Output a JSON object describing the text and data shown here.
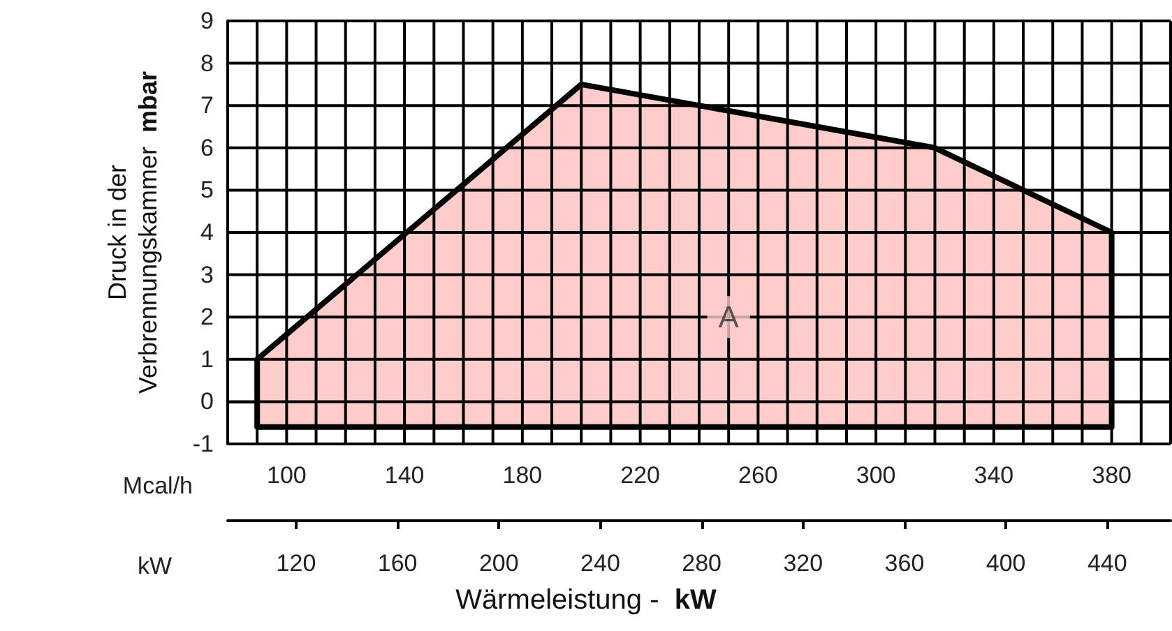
{
  "chart_data": {
    "type": "area",
    "x": [
      90,
      90,
      200,
      320,
      380,
      380,
      90
    ],
    "series": [
      {
        "color": "#ffcccc",
        "values": [
          -0.6,
          1,
          7.5,
          6,
          4,
          -0.6,
          -0.6
        ]
      }
    ],
    "xlabel": "Mcal/h",
    "x2label": "kW",
    "ylabel": "Druck in der\nVerbrennungskammer  mbar",
    "xlim": [
      80,
      400
    ],
    "xticks": [
      {
        "value": 80,
        "label": null
      },
      {
        "value": 90,
        "label": null
      },
      100,
      {
        "value": 110,
        "label": null
      },
      {
        "value": 120,
        "label": null
      },
      {
        "value": 130,
        "label": null
      },
      140,
      {
        "value": 150,
        "label": null
      },
      {
        "value": 160,
        "label": null
      },
      {
        "value": 170,
        "label": null
      },
      180,
      {
        "value": 190,
        "label": null
      },
      {
        "value": 200,
        "label": null
      },
      {
        "value": 210,
        "label": null
      },
      220,
      {
        "value": 230,
        "label": null
      },
      {
        "value": 240,
        "label": null
      },
      {
        "value": 250,
        "label": null
      },
      260,
      {
        "value": 270,
        "label": null
      },
      {
        "value": 280,
        "label": null
      },
      {
        "value": 290,
        "label": null
      },
      300,
      {
        "value": 310,
        "label": null
      },
      {
        "value": 320,
        "label": null
      },
      {
        "value": 330,
        "label": null
      },
      340,
      {
        "value": 350,
        "label": null
      },
      {
        "value": 360,
        "label": null
      },
      {
        "value": 370,
        "label": null
      },
      380,
      {
        "value": 390,
        "label": null
      },
      {
        "value": 400,
        "label": null
      }
    ],
    "x2lim": [
      93,
      465
    ],
    "x2ticks": [
      120,
      160,
      200,
      240,
      280,
      320,
      360,
      400,
      440
    ],
    "ylim": [
      -1,
      9
    ],
    "yticks": [
      -1,
      0,
      1,
      2,
      3,
      4,
      5,
      6,
      7,
      8,
      9
    ],
    "grid": true,
    "annotations": [
      {
        "text": "A",
        "x": 250,
        "y": 2
      },
      "Wärmeleistung -  kW"
    ]
  }
}
